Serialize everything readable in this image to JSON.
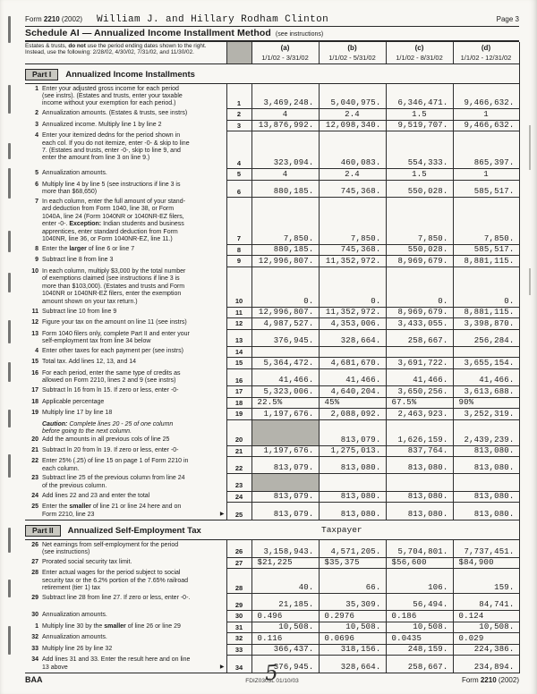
{
  "header": {
    "form_id": "Form **2210** (2002)",
    "taxpayer_name": "William J. and Hillary Rodham Clinton",
    "page_label": "Page 3",
    "schedule_title": "Schedule AI — Annualized Income Installment Method",
    "schedule_note": "(see instructions)",
    "estates_note": "Estates & trusts, **do not** use the period ending dates shown to the right. Instead, use the following: 2/28/02, 4/30/02, 7/31/02, and 11/30/02.",
    "columns": [
      {
        "letter": "(a)",
        "period": "1/1/02 - 3/31/02"
      },
      {
        "letter": "(b)",
        "period": "1/1/02 - 5/31/02"
      },
      {
        "letter": "(c)",
        "period": "1/1/02 - 8/31/02"
      },
      {
        "letter": "(d)",
        "period": "1/1/02 - 12/31/02"
      }
    ]
  },
  "table": {
    "rows": [
      {
        "type": "band",
        "label": "Part I",
        "title": "Annualized Income Installments",
        "note": ""
      },
      {
        "num": "1",
        "box": "1",
        "h": 26,
        "label": "Enter your adjusted gross income for each period (see instrs). (Estates and trusts, enter your taxable income without your exemption for each period.)",
        "values": [
          "3,469,248.",
          "5,040,975.",
          "6,346,471.",
          "9,466,632."
        ]
      },
      {
        "num": "2",
        "box": "2",
        "label": "Annualization amounts. (Estates & trusts, see instrs)",
        "align": "center",
        "values": [
          "4",
          "2.4",
          "1.5",
          "1"
        ]
      },
      {
        "num": "3",
        "box": "3",
        "label": "Annualized income. Multiply line 1 by line 2",
        "values": [
          "13,876,992.",
          "12,098,340.",
          "9,519,707.",
          "9,466,632."
        ]
      },
      {
        "num": "4",
        "box": "4",
        "h": 42,
        "label": "Enter your itemized dedns for the period shown in each col. If you do not itemize, enter -0- & skip to line 7. (Estates and trusts, enter -0-, skip to line 9, and enter the amount from line 3 on line 9.)",
        "values": [
          "323,094.",
          "460,083.",
          "554,333.",
          "865,397."
        ]
      },
      {
        "num": "5",
        "box": "5",
        "label": "Annualization amounts.",
        "align": "center",
        "values": [
          "4",
          "2.4",
          "1.5",
          "1"
        ]
      },
      {
        "num": "6",
        "box": "6",
        "h": 19,
        "label": "Multiply line 4 by line 5 (see instructions if line 3 is more than $68,650)",
        "values": [
          "880,185.",
          "745,368.",
          "550,028.",
          "585,517."
        ]
      },
      {
        "num": "7",
        "box": "7",
        "h": 52,
        "label": "In each column, enter the full amount of your stand- ard deduction from Form 1040, line 38, or Form 1040A, line 24 (Form 1040NR or 1040NR-EZ filers, enter -0-. **Exception:** Indian students and business apprentices, enter standard deduction from Form 1040NR, line 36, or Form 1040NR-EZ, line 11.)",
        "values": [
          "7,850.",
          "7,850.",
          "7,850.",
          "7,850."
        ]
      },
      {
        "num": "8",
        "box": "8",
        "label": "Enter the **larger** of line 6 or line 7",
        "values": [
          "880,185.",
          "745,368.",
          "550,028.",
          "585,517."
        ]
      },
      {
        "num": "9",
        "box": "9",
        "label": "Subtract line 8 from line 3",
        "values": [
          "12,996,807.",
          "11,352,972.",
          "8,969,679.",
          "8,881,115."
        ]
      },
      {
        "num": "10",
        "box": "10",
        "h": 44,
        "label": "In each column, multiply $3,000 by the total number of exemptions claimed (see instructions if line 3 is more than $103,000). (Estates and trusts and Form 1040NR or 1040NR-EZ filers, enter the exemption amount shown on your tax return.)",
        "values": [
          "0.",
          "0.",
          "0.",
          "0."
        ]
      },
      {
        "num": "11",
        "box": "11",
        "label": "Subtract line 10 from line 9",
        "values": [
          "12,996,807.",
          "11,352,972.",
          "8,969,679.",
          "8,881,115."
        ]
      },
      {
        "num": "12",
        "box": "12",
        "label": "Figure your tax on the amount on line 11 (see instrs)",
        "values": [
          "4,987,527.",
          "4,353,006.",
          "3,433,055.",
          "3,398,870."
        ]
      },
      {
        "num": "13",
        "box": "13",
        "h": 19,
        "label": "Form 1040 filers only, complete Part II and enter your self-employment tax from line 34 below",
        "values": [
          "376,945.",
          "328,664.",
          "258,667.",
          "256,284."
        ]
      },
      {
        "num": "4",
        "box": "14",
        "label": "Enter other taxes for each payment per (see instrs)",
        "values": [
          "",
          "",
          "",
          ""
        ]
      },
      {
        "num": "15",
        "box": "15",
        "label": "Total tax. Add lines 12, 13, and 14",
        "values": [
          "5,364,472.",
          "4,681,670.",
          "3,691,722.",
          "3,655,154."
        ]
      },
      {
        "num": "16",
        "box": "16",
        "h": 19,
        "label": "For each period, enter the same type of credits as allowed on Form 2210, lines 2 and 9 (see instrs)",
        "values": [
          "41,466.",
          "41,466.",
          "41,466.",
          "41,466."
        ]
      },
      {
        "num": "17",
        "box": "17",
        "label": "Subtract ln 16 from ln 15. If zero or less, enter -0-",
        "values": [
          "5,323,006.",
          "4,640,204.",
          "3,650,256.",
          "3,613,688."
        ]
      },
      {
        "num": "18",
        "box": "18",
        "label": "Applicable percentage",
        "align": "left",
        "values": [
          "22.5%",
          "45%",
          "67.5%",
          "90%"
        ]
      },
      {
        "num": "19",
        "box": "19",
        "label": "Multiply line 17 by line 18",
        "values": [
          "1,197,676.",
          "2,088,092.",
          "2,463,923.",
          "3,252,319."
        ]
      },
      {
        "num": "20",
        "box": "20",
        "h": 29,
        "caution": "**Caution:** Complete lines 20 - 25 of one column before going to the next column.",
        "label": "Add the amounts in all previous cols of line 25",
        "values": [
          "",
          "813,079.",
          "1,626,159.",
          "2,439,239."
        ],
        "shaded": [
          0
        ]
      },
      {
        "num": "21",
        "box": "21",
        "label": "Subtract ln 20 from ln 19. If zero or less, enter -0-",
        "values": [
          "1,197,676.",
          "1,275,013.",
          "837,764.",
          "813,080."
        ]
      },
      {
        "num": "22",
        "box": "22",
        "h": 19,
        "label": "Enter 25% (.25) of line 15 on page 1 of Form 2210 in each column.",
        "values": [
          "813,079.",
          "813,080.",
          "813,080.",
          "813,080."
        ]
      },
      {
        "num": "23",
        "box": "23",
        "h": 19,
        "label": "Subtract line 25 of the previous column from line 24 of the previous column.",
        "values": [
          "",
          "",
          "",
          ""
        ],
        "shaded": [
          0
        ]
      },
      {
        "num": "24",
        "box": "24",
        "label": "Add lines 22 and 23 and enter the total",
        "values": [
          "813,079.",
          "813,080.",
          "813,080.",
          "813,080."
        ]
      },
      {
        "num": "25",
        "box": "25",
        "h": 19,
        "arrow": true,
        "label": "Enter the **smaller** of line 21 or line 24 here and on Form 2210, line 23",
        "values": [
          "813,079.",
          "813,080.",
          "813,080.",
          "813,080."
        ]
      },
      {
        "type": "band",
        "label": "Part II",
        "title": "Annualized Self-Employment Tax",
        "note": "Taxpayer"
      },
      {
        "num": "26",
        "box": "26",
        "h": 19,
        "label": "Net earnings from self-employment for the period (see instructions)",
        "values": [
          "3,158,943.",
          "4,571,205.",
          "5,704,801.",
          "7,737,451."
        ]
      },
      {
        "num": "27",
        "box": "27",
        "label": "Prorated social security tax limit.",
        "align": "left",
        "values": [
          "$21,225",
          "$35,375",
          "$56,600",
          "$84,900"
        ]
      },
      {
        "num": "28",
        "box": "28",
        "h": 28,
        "label": "Enter actual wages for the period subject to social security tax or the 6.2% portion of the 7.65% railroad retirement (tier 1) tax",
        "values": [
          "40.",
          "66.",
          "106.",
          "159."
        ]
      },
      {
        "num": "29",
        "box": "29",
        "h": 19,
        "label": "Subtract line 28 from line 27. If zero or less, enter -0-.",
        "values": [
          "21,185.",
          "35,309.",
          "56,494.",
          "84,741."
        ]
      },
      {
        "num": "30",
        "box": "30",
        "label": "Annualization amounts.",
        "align": "left",
        "values": [
          "0.496",
          "0.2976",
          "0.186",
          "0.124"
        ]
      },
      {
        "num": "1",
        "box": "31",
        "label": "Multiply line 30 by the **smaller** of line 26 or line 29",
        "values": [
          "10,508.",
          "10,508.",
          "10,508.",
          "10,508."
        ]
      },
      {
        "num": "32",
        "box": "32",
        "label": "Annualization amounts.",
        "align": "left",
        "values": [
          "0.116",
          "0.0696",
          "0.0435",
          "0.029"
        ]
      },
      {
        "num": "33",
        "box": "33",
        "label": "Multiply line 26 by line 32",
        "values": [
          "366,437.",
          "318,156.",
          "248,159.",
          "224,386."
        ]
      },
      {
        "num": "34",
        "box": "34",
        "h": 20,
        "arrow": true,
        "last": true,
        "label": "Add lines 31 and 33. Enter the result here and on line 13 above",
        "values": [
          "376,945.",
          "328,664.",
          "258,667.",
          "234,894."
        ]
      }
    ]
  },
  "footer": {
    "left": "BAA",
    "center": "FDIZ0303L  01/10/03",
    "right": "Form **2210** (2002)",
    "handwritten_page_number": "5"
  }
}
